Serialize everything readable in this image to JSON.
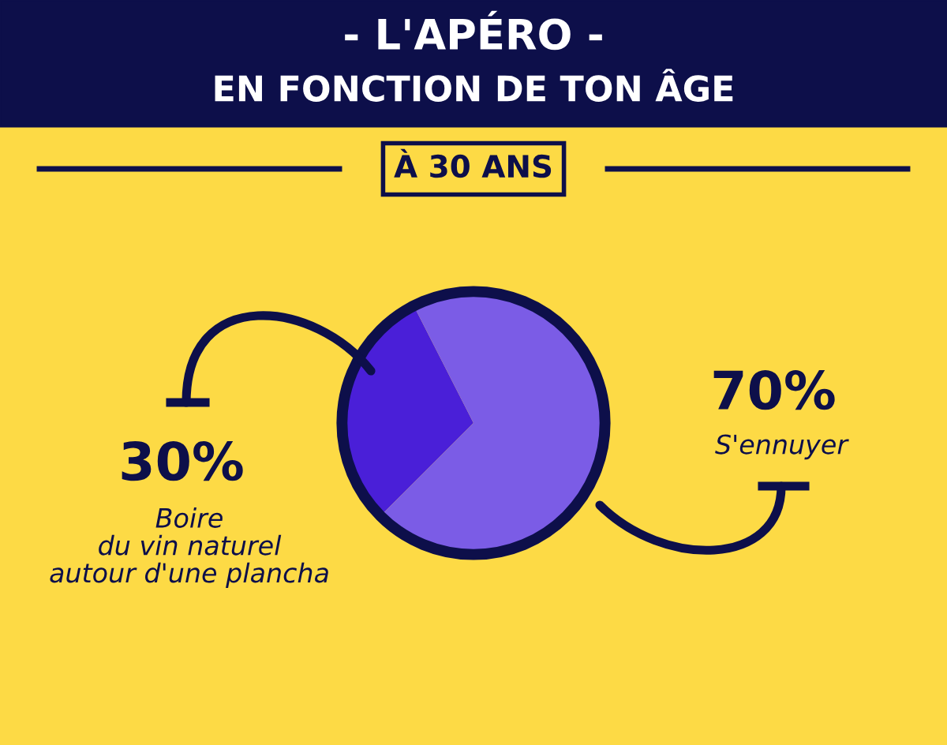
{
  "chart_data": {
    "type": "pie",
    "title": "- L'APÉRO -",
    "subtitle": "EN FONCTION DE TON ÂGE",
    "annotations": [
      "À 30 ANS"
    ],
    "categories": [
      "Boire\ndu vin naturel\nautour d'une plancha",
      "S'ennuyer"
    ],
    "values": [
      30,
      70
    ],
    "value_labels": [
      "30%",
      "70%"
    ],
    "colors": [
      "#4a1fd8",
      "#7b5ce6"
    ]
  }
}
